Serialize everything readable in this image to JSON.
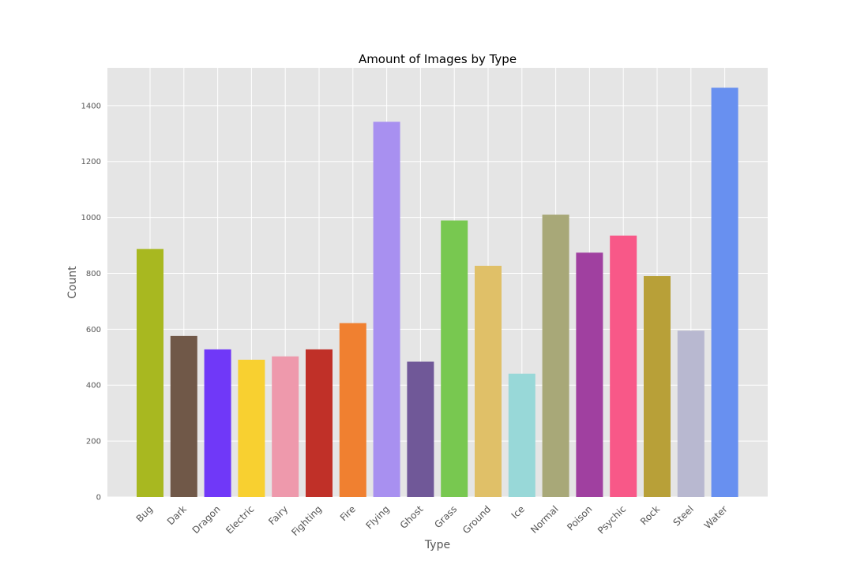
{
  "chart_data": {
    "type": "bar",
    "title": "Amount of Images by Type",
    "xlabel": "Type",
    "ylabel": "Count",
    "categories": [
      "Bug",
      "Dark",
      "Dragon",
      "Electric",
      "Fairy",
      "Fighting",
      "Fire",
      "Flying",
      "Ghost",
      "Grass",
      "Ground",
      "Ice",
      "Normal",
      "Poison",
      "Psychic",
      "Rock",
      "Steel",
      "Water"
    ],
    "values": [
      887,
      576,
      528,
      491,
      503,
      528,
      622,
      1342,
      484,
      989,
      827,
      441,
      1010,
      874,
      935,
      790,
      595,
      1464
    ],
    "colors": [
      "#a8b820",
      "#705848",
      "#7038f8",
      "#f8d030",
      "#ee99ac",
      "#c03028",
      "#f08030",
      "#a890f0",
      "#705898",
      "#78c850",
      "#e0c068",
      "#98d8d8",
      "#a8a878",
      "#a040a0",
      "#f85888",
      "#b8a038",
      "#b8b8d0",
      "#6890f0"
    ],
    "yticks": [
      0,
      200,
      400,
      600,
      800,
      1000,
      1200,
      1400
    ],
    "ylim": [
      0,
      1535
    ],
    "grid": true,
    "background": "#e5e5e5",
    "grid_color": "#ffffff"
  }
}
